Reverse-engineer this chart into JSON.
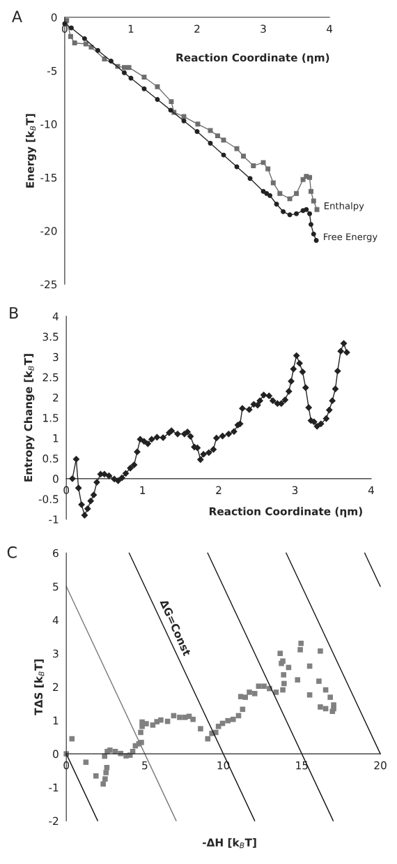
{
  "chart_data": [
    {
      "type": "line",
      "title": "A",
      "xlabel": "Reaction Coordinate (ηm)",
      "ylabel": "Energy [k$_{B}$T]",
      "xlim": [
        0,
        4
      ],
      "xticks": [
        0,
        1,
        2,
        3,
        4
      ],
      "ylim": [
        -25,
        0
      ],
      "yticks": [
        -25,
        -20,
        -15,
        -10,
        -5,
        0
      ],
      "grid": false,
      "legend": false,
      "series": [
        {
          "name": "Enthalpy",
          "color": "#6e6e6e",
          "marker": "square",
          "x": [
            0.03,
            0.09,
            0.15,
            0.32,
            0.4,
            0.6,
            0.8,
            0.9,
            0.97,
            1.2,
            1.4,
            1.61,
            1.65,
            1.8,
            2.01,
            2.2,
            2.31,
            2.4,
            2.6,
            2.7,
            2.85,
            3.0,
            3.07,
            3.15,
            3.25,
            3.4,
            3.5,
            3.6,
            3.65,
            3.7,
            3.72,
            3.76,
            3.81
          ],
          "values": [
            -0.3,
            -1.8,
            -2.4,
            -2.5,
            -2.8,
            -3.9,
            -4.6,
            -4.7,
            -4.7,
            -5.6,
            -6.5,
            -7.9,
            -8.9,
            -9.3,
            -10.0,
            -10.6,
            -11.1,
            -11.5,
            -12.3,
            -13.0,
            -13.9,
            -13.6,
            -14.2,
            -15.5,
            -16.5,
            -17.0,
            -16.5,
            -15.2,
            -14.9,
            -15.0,
            -16.3,
            -17.2,
            -18.0
          ]
        },
        {
          "name": "Free Energy",
          "color": "#222222",
          "marker": "circle",
          "x": [
            0,
            0.1,
            0.3,
            0.5,
            0.7,
            0.9,
            1.0,
            1.2,
            1.4,
            1.6,
            1.8,
            2.0,
            2.2,
            2.4,
            2.6,
            2.8,
            3.0,
            3.05,
            3.1,
            3.2,
            3.3,
            3.4,
            3.5,
            3.6,
            3.65,
            3.7,
            3.72,
            3.76,
            3.8
          ],
          "values": [
            -0.6,
            -1.0,
            -2.0,
            -3.1,
            -4.1,
            -5.2,
            -5.7,
            -6.7,
            -7.7,
            -8.7,
            -9.7,
            -10.7,
            -11.8,
            -12.9,
            -14.0,
            -15.1,
            -16.3,
            -16.5,
            -16.7,
            -17.5,
            -18.2,
            -18.5,
            -18.4,
            -18.1,
            -18.0,
            -18.4,
            -19.4,
            -20.3,
            -20.9
          ]
        }
      ]
    },
    {
      "type": "line",
      "title": "B",
      "xlabel": "Reaction Coordinate (ηm)",
      "ylabel": "Entropy Change [k$_{B}$T]",
      "xlim": [
        0,
        4
      ],
      "xticks": [
        0,
        1,
        2,
        3,
        4
      ],
      "ylim": [
        -1,
        4
      ],
      "yticks": [
        -1,
        -0.5,
        0,
        0.5,
        1,
        1.5,
        2,
        2.5,
        3,
        3.5,
        4
      ],
      "grid": false,
      "legend": false,
      "marker": "diamond",
      "series": [
        {
          "color": "#222222",
          "x": [
            0.08,
            0.13,
            0.16,
            0.2,
            0.24,
            0.28,
            0.32,
            0.36,
            0.4,
            0.45,
            0.5,
            0.56,
            0.63,
            0.68,
            0.73,
            0.78,
            0.84,
            0.89,
            0.93,
            0.97,
            1.02,
            1.07,
            1.12,
            1.19,
            1.27,
            1.35,
            1.38,
            1.46,
            1.55,
            1.59,
            1.63,
            1.68,
            1.72,
            1.76,
            1.8,
            1.87,
            1.93,
            1.97,
            2.05,
            2.13,
            2.2,
            2.25,
            2.28,
            2.31,
            2.4,
            2.46,
            2.51,
            2.54,
            2.59,
            2.66,
            2.71,
            2.77,
            2.82,
            2.87,
            2.92,
            2.95,
            2.98,
            3.02,
            3.06,
            3.1,
            3.14,
            3.18,
            3.21,
            3.25,
            3.29,
            3.34,
            3.41,
            3.45,
            3.49,
            3.53,
            3.56,
            3.6,
            3.64,
            3.68
          ],
          "values": [
            0,
            0.48,
            -0.23,
            -0.64,
            -0.9,
            -0.74,
            -0.55,
            -0.4,
            -0.09,
            0.11,
            0.11,
            0.07,
            -0.01,
            -0.05,
            0.02,
            0.13,
            0.26,
            0.34,
            0.66,
            0.97,
            0.92,
            0.86,
            0.97,
            1.02,
            1.01,
            1.13,
            1.18,
            1.1,
            1.1,
            1.15,
            1.04,
            0.78,
            0.76,
            0.47,
            0.6,
            0.64,
            0.72,
            1.0,
            1.05,
            1.1,
            1.16,
            1.32,
            1.35,
            1.73,
            1.7,
            1.83,
            1.81,
            1.92,
            2.06,
            2.04,
            1.92,
            1.85,
            1.85,
            1.94,
            2.15,
            2.4,
            2.7,
            3.03,
            2.84,
            2.63,
            2.24,
            1.75,
            1.43,
            1.4,
            1.29,
            1.35,
            1.48,
            1.69,
            1.92,
            2.21,
            2.65,
            3.14,
            3.33,
            3.11
          ]
        }
      ]
    },
    {
      "type": "scatter",
      "title": "C",
      "xlabel": "-ΔH [k$_{B}$T]",
      "ylabel": "TΔS [k$_{B}$T]",
      "xlim": [
        0,
        20
      ],
      "xticks": [
        0,
        5,
        10,
        15,
        20
      ],
      "ylim": [
        -2,
        6
      ],
      "yticks": [
        -2,
        -1,
        0,
        1,
        2,
        3,
        4,
        5,
        6
      ],
      "grid": false,
      "legend": false,
      "annotations": [
        "ΔG=Const"
      ],
      "series": [
        {
          "type": "line",
          "color": "#111111",
          "marker": "none",
          "x": [
            0,
            2
          ],
          "values": [
            0,
            -2
          ]
        },
        {
          "type": "line",
          "color": "#777777",
          "marker": "none",
          "x": [
            0,
            7
          ],
          "values": [
            5,
            -2
          ]
        },
        {
          "type": "line",
          "color": "#111111",
          "marker": "none",
          "x": [
            4,
            12
          ],
          "values": [
            6,
            -2
          ]
        },
        {
          "type": "line",
          "color": "#111111",
          "marker": "none",
          "x": [
            9,
            17
          ],
          "values": [
            6,
            -2
          ]
        },
        {
          "type": "line",
          "color": "#111111",
          "marker": "none",
          "x": [
            14,
            20
          ],
          "values": [
            6,
            0
          ]
        },
        {
          "type": "line",
          "color": "#111111",
          "marker": "none",
          "x": [
            19,
            20
          ],
          "values": [
            6,
            5
          ]
        },
        {
          "type": "scatter",
          "color": "#808080",
          "marker": "square",
          "x": [
            0,
            0.36,
            1.25,
            1.89,
            2.35,
            2.47,
            2.53,
            2.58,
            2.44,
            2.61,
            2.78,
            3.12,
            3.46,
            3.81,
            4.06,
            4.23,
            4.4,
            4.62,
            4.78,
            4.74,
            4.83,
            4.83,
            5.09,
            5.51,
            5.77,
            6.02,
            6.45,
            6.84,
            7.22,
            7.56,
            7.82,
            8.07,
            8.55,
            9.01,
            9.27,
            9.52,
            9.69,
            9.95,
            10.29,
            10.63,
            10.97,
            11.23,
            11.11,
            11.4,
            11.66,
            12.0,
            12.25,
            12.59,
            12.94,
            13.36,
            13.79,
            13.87,
            13.84,
            13.7,
            13.62,
            13.79,
            14.16,
            14.73,
            14.9,
            14.95,
            15.5,
            15.5,
            16.09,
            16.18,
            16.18,
            16.52,
            16.52,
            16.81,
            16.95,
            17.03,
            17.03
          ],
          "values": [
            0,
            0.45,
            -0.25,
            -0.66,
            -0.9,
            -0.75,
            -0.56,
            -0.41,
            -0.07,
            0.07,
            0.11,
            0.07,
            0.01,
            -0.06,
            -0.04,
            0.07,
            0.24,
            0.3,
            0.34,
            0.64,
            0.82,
            0.95,
            0.9,
            0.86,
            0.96,
            1.01,
            0.97,
            1.14,
            1.09,
            1.09,
            1.12,
            1.03,
            0.75,
            0.45,
            0.61,
            0.64,
            0.82,
            0.91,
            0.99,
            1.03,
            1.14,
            1.33,
            1.71,
            1.69,
            1.84,
            1.8,
            2.02,
            2.02,
            1.95,
            1.84,
            1.91,
            2.1,
            2.36,
            2.7,
            3.0,
            2.77,
            2.58,
            2.21,
            3.11,
            3.3,
            1.76,
            2.62,
            2.17,
            3.07,
            1.4,
            1.91,
            1.35,
            1.69,
            1.27,
            1.46,
            1.35
          ]
        }
      ]
    }
  ]
}
